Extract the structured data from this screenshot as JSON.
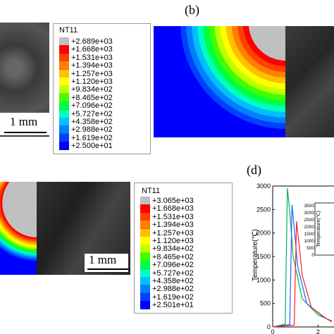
{
  "panels": {
    "b": {
      "label": "(b)"
    },
    "d": {
      "label": "(d)"
    }
  },
  "scale_bars": {
    "top": "1 mm",
    "bottom": "1 mm"
  },
  "legend_top": {
    "title": "NT11",
    "labels": [
      "+2.689e+03",
      "+1.668e+03",
      "+1.531e+03",
      "+1.394e+03",
      "+1.257e+03",
      "+1.120e+03",
      "+9.834e+02",
      "+8.465e+02",
      "+7.096e+02",
      "+5.727e+02",
      "+4.358e+02",
      "+2.988e+02",
      "+1.619e+02",
      "+2.500e+01"
    ]
  },
  "legend_bottom": {
    "title": "NT11",
    "labels": [
      "+3.065e+03",
      "+1.668e+03",
      "+1.531e+03",
      "+1.394e+03",
      "+1.257e+03",
      "+1.120e+03",
      "+9.834e+02",
      "+8.465e+02",
      "+7.096e+02",
      "+5.727e+02",
      "+4.358e+02",
      "+2.988e+02",
      "+1.619e+02",
      "+2.501e+01"
    ]
  },
  "legend_colors": [
    "#c0c0c0",
    "#ff0000",
    "#ff4000",
    "#ff8000",
    "#ffbf00",
    "#ffff00",
    "#bfff00",
    "#40ff00",
    "#00ff40",
    "#00ffbf",
    "#00bfff",
    "#0080ff",
    "#0040ff",
    "#0000ff"
  ],
  "chart_data": {
    "type": "line",
    "ylabel": "Temperature(℃)",
    "ylim": [
      0,
      3000
    ],
    "yticks": [
      0,
      500,
      1000,
      1500,
      2000,
      2500,
      3000
    ],
    "xticks": [
      0,
      2
    ],
    "series": [
      {
        "color": "#00b050",
        "x": [
          0,
          0.55,
          0.65,
          0.75,
          0.9,
          1.3,
          2.0,
          2.6
        ],
        "values": [
          0,
          60,
          2950,
          2450,
          1500,
          600,
          250,
          130
        ]
      },
      {
        "color": "#1f5fff",
        "x": [
          0,
          0.75,
          0.85,
          0.95,
          1.1,
          1.5,
          2.2,
          2.6
        ],
        "values": [
          0,
          50,
          2600,
          2100,
          1300,
          500,
          220,
          120
        ]
      },
      {
        "color": "#ff2020",
        "x": [
          0,
          0.95,
          1.05,
          1.15,
          1.3,
          1.7,
          2.3,
          2.6
        ],
        "values": [
          0,
          40,
          2250,
          1800,
          1100,
          420,
          200,
          110
        ]
      }
    ],
    "inset": {
      "ylabel": "Temperature(℃)",
      "yticks": [
        0,
        500,
        1000,
        1500,
        2000,
        2500,
        3000,
        3500
      ]
    }
  }
}
